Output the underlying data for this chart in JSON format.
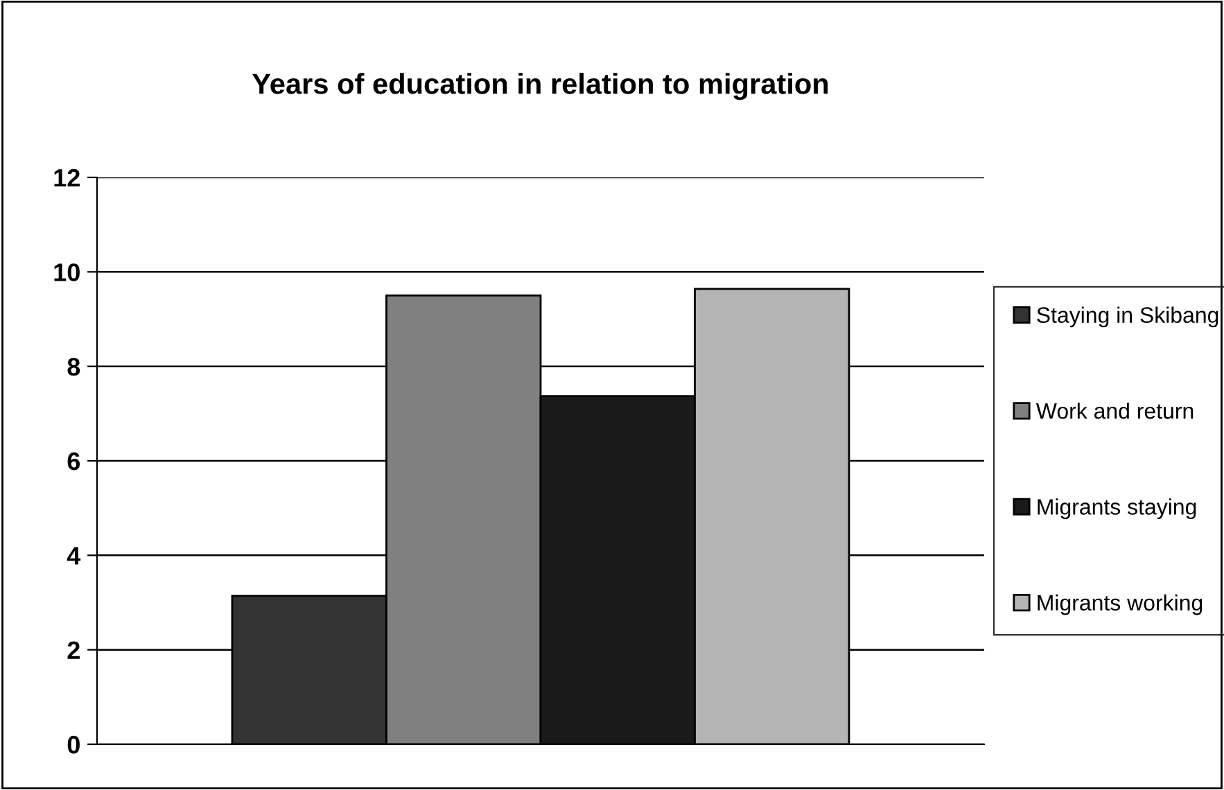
{
  "chart_data": {
    "type": "bar",
    "title": "Years of education in relation to migration",
    "categories": [
      null
    ],
    "series": [
      {
        "name": "Staying in Skibang",
        "color": "#333333",
        "values": [
          3.14
        ]
      },
      {
        "name": "Work and return",
        "color": "#808080",
        "values": [
          9.5
        ]
      },
      {
        "name": "Migrants staying",
        "color": "#1a1a1a",
        "values": [
          7.37
        ]
      },
      {
        "name": "Migrants working",
        "color": "#b4b4b4",
        "values": [
          9.64
        ]
      }
    ],
    "ylim": [
      0,
      12
    ],
    "yticks": [
      0,
      2,
      4,
      6,
      8,
      10,
      12
    ],
    "grid": "y",
    "legend": "right"
  }
}
